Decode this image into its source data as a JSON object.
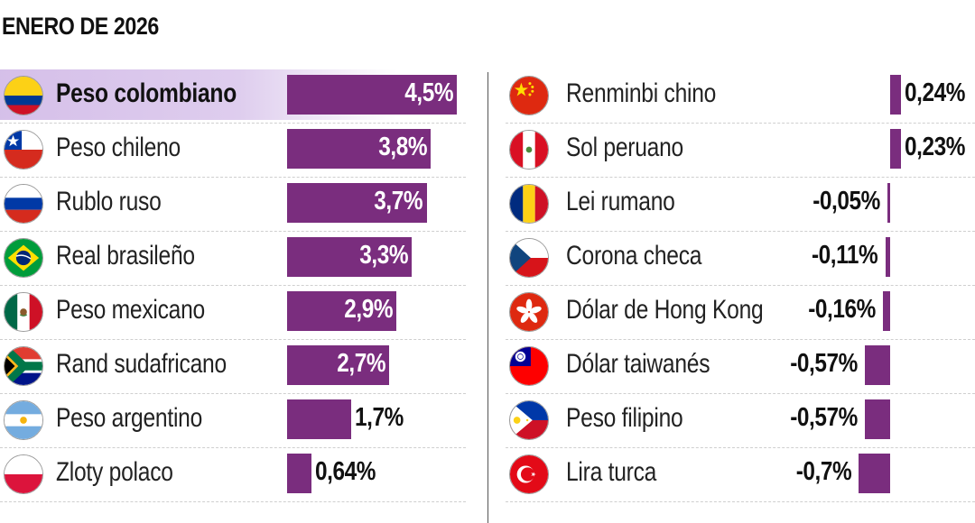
{
  "title": "ENERO DE 2026",
  "colors": {
    "bar": "#7a2d7e",
    "highlight": "#d3bce8"
  },
  "chart_data": {
    "type": "bar",
    "title": "ENERO DE 2026",
    "orientation": "horizontal",
    "categories_left": [
      "Peso colombiano",
      "Peso chileno",
      "Rublo ruso",
      "Real brasileño",
      "Peso mexicano",
      "Rand sudafricano",
      "Peso argentino",
      "Zloty polaco"
    ],
    "values_left": [
      4.5,
      3.8,
      3.7,
      3.3,
      2.9,
      2.7,
      1.7,
      0.64
    ],
    "labels_left": [
      "4,5%",
      "3,8%",
      "3,7%",
      "3,3%",
      "2,9%",
      "2,7%",
      "1,7%",
      "0,64%"
    ],
    "categories_right": [
      "Renminbi chino",
      "Sol peruano",
      "Lei rumano",
      "Corona checa",
      "Dólar de Hong Kong",
      "Dólar taiwanés",
      "Peso filipino",
      "Lira turca"
    ],
    "values_right": [
      0.24,
      0.23,
      -0.05,
      -0.11,
      -0.16,
      -0.57,
      -0.57,
      -0.7
    ],
    "labels_right": [
      "0,24%",
      "0,23%",
      "-0,05%",
      "-0,11%",
      "-0,16%",
      "-0,57%",
      "-0,57%",
      "-0,7%"
    ],
    "highlight": "Peso colombiano",
    "flags_left": [
      "colombia-flag-icon",
      "chile-flag-icon",
      "russia-flag-icon",
      "brazil-flag-icon",
      "mexico-flag-icon",
      "south-africa-flag-icon",
      "argentina-flag-icon",
      "poland-flag-icon"
    ],
    "flags_right": [
      "china-flag-icon",
      "peru-flag-icon",
      "romania-flag-icon",
      "czechia-flag-icon",
      "hong-kong-flag-icon",
      "taiwan-flag-icon",
      "philippines-flag-icon",
      "turkey-flag-icon"
    ]
  }
}
